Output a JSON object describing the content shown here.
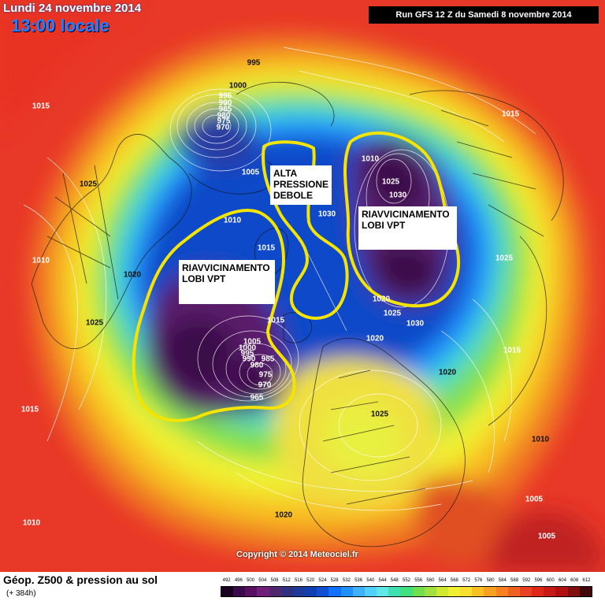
{
  "header": {
    "date": "Lundi 24 novembre 2014",
    "time": "13:00 locale",
    "run": "Run GFS 12 Z du Samedi 8 novembre 2014"
  },
  "annotations": {
    "alta": "ALTA\nPRESSIONE\nDEBOLE",
    "riav_east": "RIAVVICINAMENTO\nLOBI VPT",
    "riav_west": "RIAVVICINAMENTO\nLOBI VPT"
  },
  "pressure_labels": [
    "995",
    "1000",
    "995",
    "990",
    "985",
    "980",
    "975",
    "970",
    "1015",
    "1015",
    "1025",
    "1005",
    "1010",
    "1025",
    "1030",
    "1030",
    "1025",
    "1010",
    "1015",
    "1010",
    "1020",
    "1025",
    "1025",
    "1020",
    "1025",
    "1030",
    "1015",
    "1005",
    "1000",
    "995",
    "990",
    "985",
    "980",
    "975",
    "970",
    "965",
    "1015",
    "1020",
    "1020",
    "1025",
    "1010",
    "1015",
    "1010",
    "1005",
    "1005",
    "1020"
  ],
  "copyright": "Copyright © 2014 Meteociel.fr",
  "legend": {
    "title": "Géop. Z500 & pression au sol",
    "subtitle": "(+ 384h)",
    "values": [
      "492",
      "496",
      "500",
      "504",
      "508",
      "512",
      "516",
      "520",
      "524",
      "528",
      "532",
      "536",
      "540",
      "544",
      "548",
      "552",
      "556",
      "560",
      "564",
      "568",
      "572",
      "576",
      "580",
      "584",
      "588",
      "592",
      "596",
      "600",
      "604",
      "608",
      "612"
    ],
    "colors": [
      "#1a0020",
      "#3a0a4a",
      "#5a1060",
      "#70207a",
      "#502870",
      "#303080",
      "#203a9a",
      "#1040b0",
      "#1050d0",
      "#1070ff",
      "#2090ff",
      "#40b0ff",
      "#50d0ff",
      "#60e8e8",
      "#40e0b0",
      "#40e080",
      "#70e050",
      "#a0e040",
      "#d0e830",
      "#f0f030",
      "#f8e030",
      "#f8c020",
      "#f8a020",
      "#f88020",
      "#f06020",
      "#e84020",
      "#e02818",
      "#c81818",
      "#b01010",
      "#801010",
      "#400808"
    ]
  }
}
